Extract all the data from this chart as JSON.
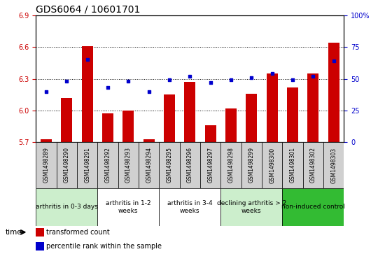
{
  "title": "GDS6064 / 10601701",
  "samples": [
    "GSM1498289",
    "GSM1498290",
    "GSM1498291",
    "GSM1498292",
    "GSM1498293",
    "GSM1498294",
    "GSM1498295",
    "GSM1498296",
    "GSM1498297",
    "GSM1498298",
    "GSM1498299",
    "GSM1498300",
    "GSM1498301",
    "GSM1498302",
    "GSM1498303"
  ],
  "red_values": [
    5.73,
    6.12,
    6.61,
    5.97,
    6.0,
    5.73,
    6.15,
    6.27,
    5.86,
    6.02,
    6.16,
    6.35,
    6.22,
    6.35,
    6.64
  ],
  "blue_values": [
    40,
    48,
    65,
    43,
    48,
    40,
    49,
    52,
    47,
    49,
    51,
    54,
    49,
    52,
    64
  ],
  "ylim_left": [
    5.7,
    6.9
  ],
  "ylim_right": [
    0,
    100
  ],
  "yticks_left": [
    5.7,
    6.0,
    6.3,
    6.6,
    6.9
  ],
  "yticks_right": [
    0,
    25,
    50,
    75,
    100
  ],
  "ytick_labels_right": [
    "0",
    "25",
    "50",
    "75",
    "100%"
  ],
  "hlines": [
    6.0,
    6.3,
    6.6
  ],
  "groups": [
    {
      "label": "arthritis in 0-3 days",
      "start": 0,
      "end": 3,
      "color": "#cceecc"
    },
    {
      "label": "arthritis in 1-2\nweeks",
      "start": 3,
      "end": 6,
      "color": "#ffffff"
    },
    {
      "label": "arthritis in 3-4\nweeks",
      "start": 6,
      "end": 9,
      "color": "#ffffff"
    },
    {
      "label": "declining arthritis > 2\nweeks",
      "start": 9,
      "end": 12,
      "color": "#cceecc"
    },
    {
      "label": "non-induced control",
      "start": 12,
      "end": 15,
      "color": "#33bb33"
    }
  ],
  "bar_color": "#cc0000",
  "dot_color": "#0000cc",
  "legend_red": "transformed count",
  "legend_blue": "percentile rank within the sample",
  "title_fontsize": 10,
  "tick_fontsize": 7,
  "sample_fontsize": 5.5,
  "group_fontsize": 6.5
}
